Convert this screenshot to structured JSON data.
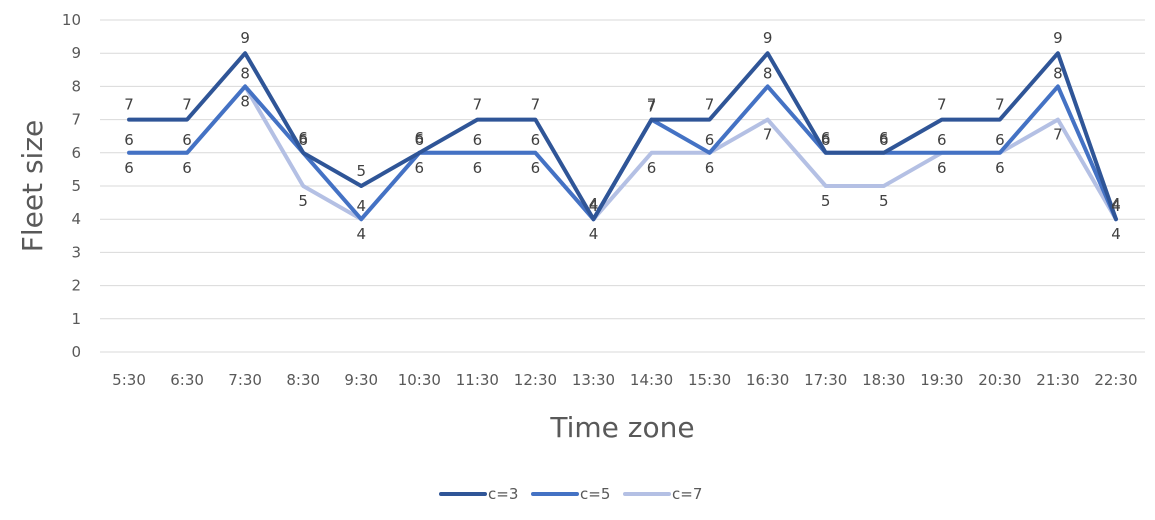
{
  "chart_data": {
    "type": "line",
    "title": "",
    "xlabel": "Time zone",
    "ylabel": "Fleet size",
    "ylim": [
      0,
      10
    ],
    "yticks": [
      "0",
      "1",
      "2",
      "3",
      "4",
      "5",
      "6",
      "7",
      "8",
      "9",
      "10"
    ],
    "grid": true,
    "legend_position": "bottom",
    "categories": [
      "5:30",
      "6:30",
      "7:30",
      "8:30",
      "9:30",
      "10:30",
      "11:30",
      "12:30",
      "13:30",
      "14:30",
      "15:30",
      "16:30",
      "17:30",
      "18:30",
      "19:30",
      "20:30",
      "21:30",
      "22:30"
    ],
    "series": [
      {
        "name": "c=3",
        "color": "#2F5597",
        "values": [
          7,
          7,
          9,
          6,
          5,
          6,
          7,
          7,
          4,
          7,
          7,
          9,
          6,
          6,
          7,
          7,
          9,
          4
        ]
      },
      {
        "name": "c=5",
        "color": "#4472C4",
        "values": [
          6,
          6,
          8,
          6,
          4,
          6,
          6,
          6,
          4,
          7,
          6,
          8,
          6,
          6,
          6,
          6,
          8,
          4
        ]
      },
      {
        "name": "c=7",
        "color": "#B4C0E4",
        "values": [
          6,
          6,
          8,
          5,
          4,
          6,
          6,
          6,
          4,
          6,
          6,
          7,
          5,
          5,
          6,
          6,
          7,
          4
        ]
      }
    ]
  }
}
